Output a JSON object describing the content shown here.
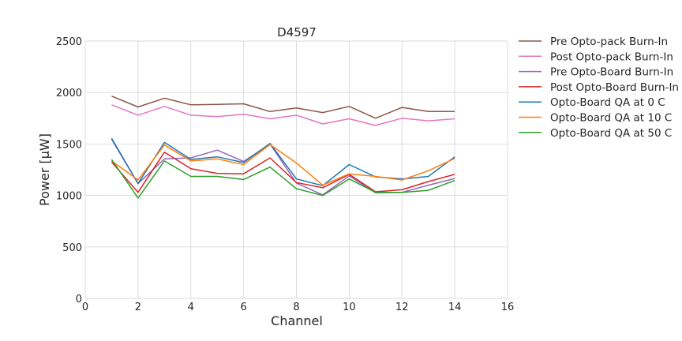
{
  "chart_data": {
    "type": "line",
    "title": "D4597",
    "xlabel": "Channel",
    "ylabel": "Power [μW]",
    "xlim": [
      0,
      16
    ],
    "ylim": [
      0,
      2500
    ],
    "xticks": [
      0,
      2,
      4,
      6,
      8,
      10,
      12,
      14,
      16
    ],
    "yticks": [
      0,
      500,
      1000,
      1500,
      2000,
      2500
    ],
    "grid": true,
    "legend_position": "outside-right",
    "x": [
      1,
      2,
      3,
      4,
      5,
      6,
      7,
      8,
      9,
      10,
      11,
      12,
      13,
      14
    ],
    "series": [
      {
        "name": "Pre Opto-pack Burn-In",
        "color": "#8c564b",
        "values": [
          1965,
          1860,
          1945,
          1880,
          1885,
          1890,
          1815,
          1850,
          1805,
          1865,
          1750,
          1855,
          1815,
          1815
        ]
      },
      {
        "name": "Post Opto-pack Burn-In",
        "color": "#e377c2",
        "values": [
          1880,
          1780,
          1865,
          1780,
          1765,
          1790,
          1745,
          1780,
          1695,
          1745,
          1680,
          1750,
          1725,
          1745
        ]
      },
      {
        "name": "Pre Opto-Board Burn-In",
        "color": "#9467bd",
        "values": [
          1545,
          1115,
          1355,
          1365,
          1440,
          1330,
          1500,
          1120,
          1005,
          1190,
          1025,
          1030,
          1100,
          1165
        ]
      },
      {
        "name": "Post Opto-Board Burn-In",
        "color": "#d62728",
        "values": [
          1325,
          1030,
          1420,
          1260,
          1215,
          1210,
          1365,
          1125,
          1075,
          1205,
          1035,
          1055,
          1135,
          1205
        ]
      },
      {
        "name": "Opto-Board QA at 0 C",
        "color": "#1f77b4",
        "values": [
          1555,
          1115,
          1515,
          1350,
          1375,
          1320,
          1505,
          1160,
          1095,
          1300,
          1180,
          1160,
          1185,
          1375
        ]
      },
      {
        "name": "Opto-Board QA at 10 C",
        "color": "#ff7f0e",
        "values": [
          1335,
          1150,
          1490,
          1335,
          1355,
          1300,
          1495,
          1315,
          1100,
          1210,
          1185,
          1150,
          1240,
          1360
        ]
      },
      {
        "name": "Opto-Board QA at 50 C",
        "color": "#2ca02c",
        "values": [
          1350,
          975,
          1335,
          1185,
          1185,
          1155,
          1275,
          1065,
          1000,
          1160,
          1030,
          1030,
          1050,
          1145
        ]
      }
    ]
  }
}
